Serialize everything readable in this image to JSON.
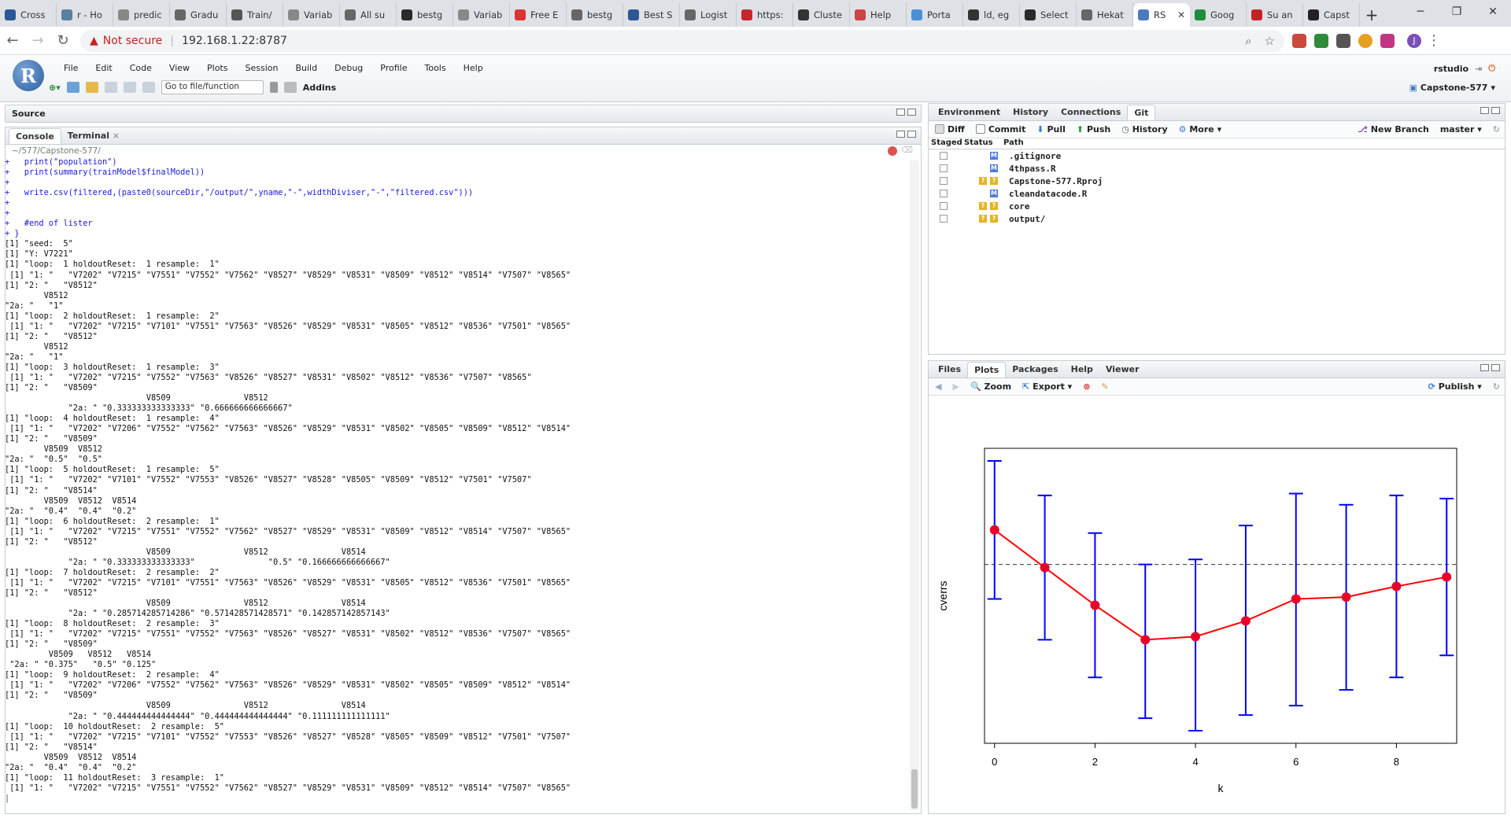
{
  "browser": {
    "tabs": [
      {
        "label": "Cross",
        "color": "#2b5797"
      },
      {
        "label": "r - Ho",
        "color": "#5b7fa3"
      },
      {
        "label": "predic",
        "color": "#888"
      },
      {
        "label": "Gradu",
        "color": "#666"
      },
      {
        "label": "Train/",
        "color": "#555"
      },
      {
        "label": "Variab",
        "color": "#888"
      },
      {
        "label": "All su",
        "color": "#666"
      },
      {
        "label": "bestg",
        "color": "#2a2a2a"
      },
      {
        "label": "Variab",
        "color": "#888"
      },
      {
        "label": "Free E",
        "color": "#d33"
      },
      {
        "label": "bestg",
        "color": "#666"
      },
      {
        "label": "Best S",
        "color": "#2b5797"
      },
      {
        "label": "Logist",
        "color": "#666"
      },
      {
        "label": "https:",
        "color": "#c62828"
      },
      {
        "label": "Cluste",
        "color": "#333"
      },
      {
        "label": "Help",
        "color": "#c44"
      },
      {
        "label": "Porta",
        "color": "#4a90d9"
      },
      {
        "label": "ld, eg",
        "color": "#333"
      },
      {
        "label": "Select",
        "color": "#2a2a2a"
      },
      {
        "label": "Hekat",
        "color": "#666"
      },
      {
        "label": "RS",
        "color": "#4a7bbf",
        "active": true
      },
      {
        "label": "Goog",
        "color": "#1e8e3e"
      },
      {
        "label": "Su an",
        "color": "#c5221f"
      },
      {
        "label": "Capst",
        "color": "#222"
      }
    ],
    "address": {
      "warning": "Not secure",
      "url": "192.168.1.22:8787"
    }
  },
  "rstudio": {
    "menus": [
      "File",
      "Edit",
      "Code",
      "View",
      "Plots",
      "Session",
      "Build",
      "Debug",
      "Profile",
      "Tools",
      "Help"
    ],
    "goto_placeholder": "Go to file/function",
    "addins": "Addins",
    "user": "rstudio",
    "project": "Capstone-577"
  },
  "source_pane": {
    "title": "Source"
  },
  "console_pane": {
    "tabs": [
      "Console",
      "Terminal"
    ],
    "path": "~/577/Capstone-577/",
    "lines": [
      {
        "t": "+   print(\"population\")",
        "c": true
      },
      {
        "t": "+   print(summary(trainModel$finalModel))",
        "c": true
      },
      {
        "t": "+",
        "c": true
      },
      {
        "t": "+   write.csv(filtered,(paste0(sourceDir,\"/output/\",yname,\"-\",widthDiviser,\"-\",\"filtered.csv\")))",
        "c": true
      },
      {
        "t": "+",
        "c": true
      },
      {
        "t": "+",
        "c": true
      },
      {
        "t": "+   #end of lister",
        "c": true
      },
      {
        "t": "+ }",
        "c": true
      },
      {
        "t": "[1] \"seed:  5\""
      },
      {
        "t": "[1] \"Y: V7221\""
      },
      {
        "t": "[1] \"loop:  1 holdoutReset:  1 resample:  1\""
      },
      {
        "t": " [1] \"1: \"   \"V7202\" \"V7215\" \"V7551\" \"V7552\" \"V7562\" \"V8527\" \"V8529\" \"V8531\" \"V8509\" \"V8512\" \"V8514\" \"V7507\" \"V8565\""
      },
      {
        "t": "[1] \"2: \"   \"V8512\""
      },
      {
        "t": "        V8512"
      },
      {
        "t": "\"2a: \"   \"1\""
      },
      {
        "t": "[1] \"loop:  2 holdoutReset:  1 resample:  2\""
      },
      {
        "t": " [1] \"1: \"   \"V7202\" \"V7215\" \"V7101\" \"V7551\" \"V7563\" \"V8526\" \"V8529\" \"V8531\" \"V8505\" \"V8512\" \"V8536\" \"V7501\" \"V8565\""
      },
      {
        "t": "[1] \"2: \"   \"V8512\""
      },
      {
        "t": "        V8512"
      },
      {
        "t": "\"2a: \"   \"1\""
      },
      {
        "t": "[1] \"loop:  3 holdoutReset:  1 resample:  3\""
      },
      {
        "t": " [1] \"1: \"   \"V7202\" \"V7215\" \"V7552\" \"V7563\" \"V8526\" \"V8527\" \"V8531\" \"V8502\" \"V8512\" \"V8536\" \"V7507\" \"V8565\""
      },
      {
        "t": "[1] \"2: \"   \"V8509\""
      },
      {
        "t": "                             V8509               V8512"
      },
      {
        "t": "             \"2a: \" \"0.333333333333333\" \"0.666666666666667\""
      },
      {
        "t": "[1] \"loop:  4 holdoutReset:  1 resample:  4\""
      },
      {
        "t": " [1] \"1: \"   \"V7202\" \"V7206\" \"V7552\" \"V7562\" \"V7563\" \"V8526\" \"V8529\" \"V8531\" \"V8502\" \"V8505\" \"V8509\" \"V8512\" \"V8514\""
      },
      {
        "t": "[1] \"2: \"   \"V8509\""
      },
      {
        "t": "        V8509  V8512"
      },
      {
        "t": "\"2a: \"  \"0.5\"  \"0.5\""
      },
      {
        "t": "[1] \"loop:  5 holdoutReset:  1 resample:  5\""
      },
      {
        "t": " [1] \"1: \"   \"V7202\" \"V7101\" \"V7552\" \"V7553\" \"V8526\" \"V8527\" \"V8528\" \"V8505\" \"V8509\" \"V8512\" \"V7501\" \"V7507\""
      },
      {
        "t": "[1] \"2: \"   \"V8514\""
      },
      {
        "t": "        V8509  V8512  V8514"
      },
      {
        "t": "\"2a: \"  \"0.4\"  \"0.4\"  \"0.2\""
      },
      {
        "t": "[1] \"loop:  6 holdoutReset:  2 resample:  1\""
      },
      {
        "t": " [1] \"1: \"   \"V7202\" \"V7215\" \"V7551\" \"V7552\" \"V7562\" \"V8527\" \"V8529\" \"V8531\" \"V8509\" \"V8512\" \"V8514\" \"V7507\" \"V8565\""
      },
      {
        "t": "[1] \"2: \"   \"V8512\""
      },
      {
        "t": "                             V8509               V8512               V8514"
      },
      {
        "t": "             \"2a: \" \"0.333333333333333\"               \"0.5\" \"0.166666666666667\""
      },
      {
        "t": "[1] \"loop:  7 holdoutReset:  2 resample:  2\""
      },
      {
        "t": " [1] \"1: \"   \"V7202\" \"V7215\" \"V7101\" \"V7551\" \"V7563\" \"V8526\" \"V8529\" \"V8531\" \"V8505\" \"V8512\" \"V8536\" \"V7501\" \"V8565\""
      },
      {
        "t": "[1] \"2: \"   \"V8512\""
      },
      {
        "t": "                             V8509               V8512               V8514"
      },
      {
        "t": "             \"2a: \" \"0.285714285714286\" \"0.571428571428571\" \"0.142857142857143\""
      },
      {
        "t": "[1] \"loop:  8 holdoutReset:  2 resample:  3\""
      },
      {
        "t": " [1] \"1: \"   \"V7202\" \"V7215\" \"V7551\" \"V7552\" \"V7563\" \"V8526\" \"V8527\" \"V8531\" \"V8502\" \"V8512\" \"V8536\" \"V7507\" \"V8565\""
      },
      {
        "t": "[1] \"2: \"   \"V8509\""
      },
      {
        "t": "         V8509   V8512   V8514"
      },
      {
        "t": " \"2a: \" \"0.375\"   \"0.5\" \"0.125\""
      },
      {
        "t": "[1] \"loop:  9 holdoutReset:  2 resample:  4\""
      },
      {
        "t": " [1] \"1: \"   \"V7202\" \"V7206\" \"V7552\" \"V7562\" \"V7563\" \"V8526\" \"V8529\" \"V8531\" \"V8502\" \"V8505\" \"V8509\" \"V8512\" \"V8514\""
      },
      {
        "t": "[1] \"2: \"   \"V8509\""
      },
      {
        "t": "                             V8509               V8512               V8514"
      },
      {
        "t": "             \"2a: \" \"0.444444444444444\" \"0.444444444444444\" \"0.111111111111111\""
      },
      {
        "t": "[1] \"loop:  10 holdoutReset:  2 resample:  5\""
      },
      {
        "t": " [1] \"1: \"   \"V7202\" \"V7215\" \"V7101\" \"V7552\" \"V7553\" \"V8526\" \"V8527\" \"V8528\" \"V8505\" \"V8509\" \"V8512\" \"V7501\" \"V7507\""
      },
      {
        "t": "[1] \"2: \"   \"V8514\""
      },
      {
        "t": "        V8509  V8512  V8514"
      },
      {
        "t": "\"2a: \"  \"0.4\"  \"0.4\"  \"0.2\""
      },
      {
        "t": "[1] \"loop:  11 holdoutReset:  3 resample:  1\""
      },
      {
        "t": " [1] \"1: \"   \"V7202\" \"V7215\" \"V7551\" \"V7552\" \"V7562\" \"V8527\" \"V8529\" \"V8531\" \"V8509\" \"V8512\" \"V8514\" \"V7507\" \"V8565\""
      }
    ]
  },
  "env_pane": {
    "tabs": [
      "Environment",
      "History",
      "Connections",
      "Git"
    ],
    "git_toolbar": [
      "Diff",
      "Commit",
      "Pull",
      "Push",
      "History",
      "More"
    ],
    "new_branch": "New Branch",
    "branch": "master",
    "columns": [
      "Staged",
      "Status",
      "Path"
    ],
    "files": [
      {
        "path": ".gitignore",
        "status": "M"
      },
      {
        "path": "4thpass.R",
        "status": "M"
      },
      {
        "path": "Capstone-577.Rproj",
        "status": "??"
      },
      {
        "path": "cleandatacode.R",
        "status": "M"
      },
      {
        "path": "core",
        "status": "??"
      },
      {
        "path": "output/",
        "status": "??"
      }
    ]
  },
  "files_pane": {
    "tabs": [
      "Files",
      "Plots",
      "Packages",
      "Help",
      "Viewer"
    ],
    "toolbar": {
      "zoom": "Zoom",
      "export": "Export",
      "publish": "Publish"
    }
  },
  "chart_data": {
    "type": "line",
    "xlabel": "k",
    "ylabel": "cverrs",
    "x": [
      0,
      1,
      2,
      3,
      4,
      5,
      6,
      7,
      8,
      9
    ],
    "x_ticks": [
      0,
      2,
      4,
      6,
      8
    ],
    "series": [
      {
        "values": [
          0.62,
          0.56,
          0.5,
          0.445,
          0.45,
          0.475,
          0.51,
          0.513,
          0.53,
          0.545
        ]
      }
    ],
    "error_upper": [
      0.73,
      0.675,
      0.615,
      0.565,
      0.573,
      0.627,
      0.678,
      0.66,
      0.675,
      0.67
    ],
    "error_lower": [
      0.51,
      0.445,
      0.385,
      0.32,
      0.3,
      0.325,
      0.34,
      0.365,
      0.385,
      0.42
    ],
    "hline": 0.565,
    "xlim": [
      -0.2,
      9.2
    ],
    "ylim": [
      0.28,
      0.75
    ],
    "colors": {
      "line": "#ff0000",
      "points": "#e8002a",
      "errorbars": "#0000ff",
      "hline": "#333333"
    }
  }
}
